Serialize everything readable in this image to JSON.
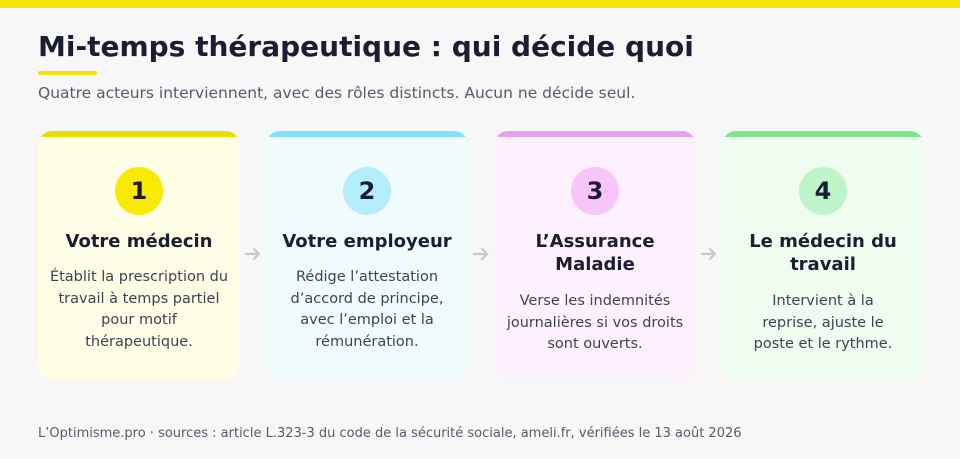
{
  "header": {
    "title": "Mi-temps thérapeutique : qui décide quoi",
    "subtitle": "Quatre acteurs interviennent, avec des rôles distincts. Aucun ne décide seul."
  },
  "steps": [
    {
      "number": "1",
      "title": "Votre médecin",
      "description": "Établit la prescription du travail à temps partiel pour motif thérapeutique.",
      "accent_color": "#ebdc00",
      "circle_color": "#f8ea00",
      "bg_color": "#fefde6"
    },
    {
      "number": "2",
      "title": "Votre employeur",
      "description": "Rédige l’attestation d’accord de principe, avec l’emploi et la rémunération.",
      "accent_color": "#7fe2f5",
      "circle_color": "#b3eefa",
      "bg_color": "#f0fbfe"
    },
    {
      "number": "3",
      "title": "L’Assurance Maladie",
      "description": "Verse les indemnités journalières si vos droits sont ouverts.",
      "accent_color": "#e7a2ec",
      "circle_color": "#f8c5fa",
      "bg_color": "#fdf1fd"
    },
    {
      "number": "4",
      "title": "Le médecin du travail",
      "description": "Intervient à la reprise, ajuste le poste et le rythme.",
      "accent_color": "#7ee58e",
      "circle_color": "#bff4c8",
      "bg_color": "#effcf0"
    }
  ],
  "arrow_color": "#c8c8c8",
  "footer": {
    "text": "L’Optimisme.pro · sources : article L.323-3 du code de la sécurité sociale, ameli.fr, vérifiées le 13 août 2026"
  }
}
